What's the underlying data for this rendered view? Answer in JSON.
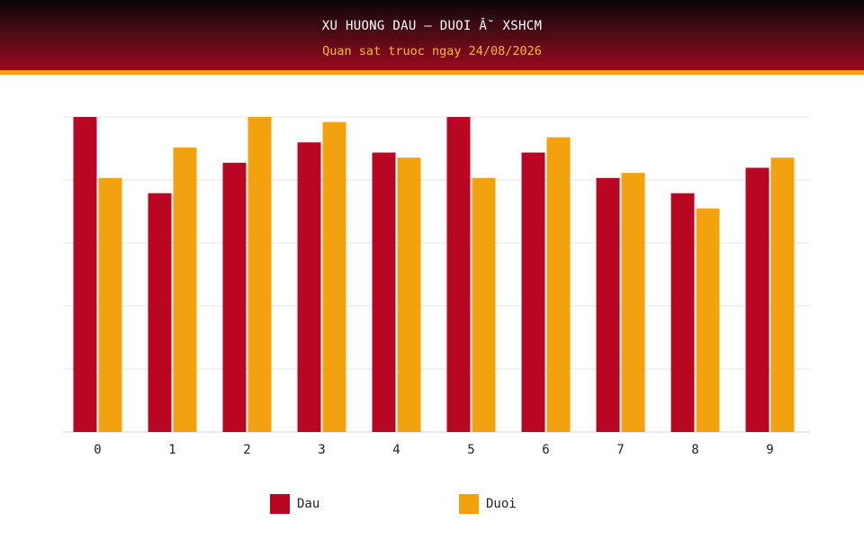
{
  "header": {
    "title": "XU HUONG DAU – DUOI Â˘ XSHCM",
    "subtitle": "Quan sat truoc ngay 24/08/2026"
  },
  "colors": {
    "dau": "#b80623",
    "duoi": "#f2a20f",
    "grid": "#e6e6e6",
    "axis": "#d0d0d0"
  },
  "legend": {
    "dau_label": "Dau",
    "duoi_label": "Duoi"
  },
  "chart_data": {
    "type": "bar",
    "categories": [
      "0",
      "1",
      "2",
      "3",
      "4",
      "5",
      "6",
      "7",
      "8",
      "9"
    ],
    "series": [
      {
        "name": "Dau",
        "values": [
          31,
          23.5,
          26.5,
          28.5,
          27.5,
          31,
          27.5,
          25,
          23.5,
          26
        ]
      },
      {
        "name": "Duoi",
        "values": [
          25,
          28,
          31,
          30.5,
          27,
          25,
          29,
          25.5,
          22,
          27
        ]
      }
    ],
    "ylim": [
      0,
      31
    ],
    "grid": true,
    "legend_position": "bottom"
  }
}
